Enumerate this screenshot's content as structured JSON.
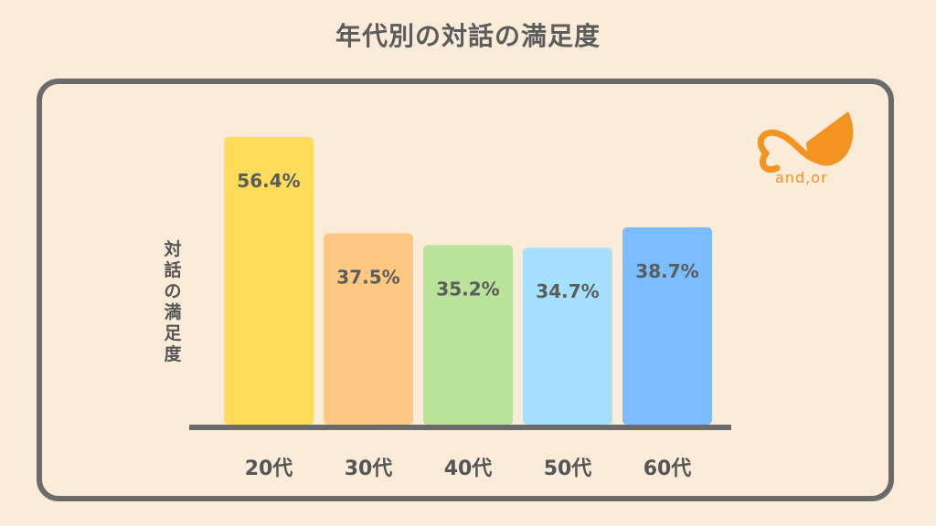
{
  "title": "年代別の対話の満足度",
  "logo": {
    "text": "and,or",
    "color": "#f39320"
  },
  "chart_data": {
    "type": "bar",
    "title": "年代別の対話の満足度",
    "xlabel": "",
    "ylabel": "対話の満足度",
    "categories": [
      "20代",
      "30代",
      "40代",
      "50代",
      "60代"
    ],
    "values": [
      56.4,
      37.5,
      35.2,
      34.7,
      38.7
    ],
    "value_labels": [
      "56.4%",
      "37.5%",
      "35.2%",
      "34.7%",
      "38.7%"
    ],
    "colors": [
      "#ffdc5a",
      "#ffc882",
      "#b9e39b",
      "#a6e0ff",
      "#7bbeff"
    ],
    "ylim": [
      0,
      60
    ],
    "grid": false,
    "legend": "none"
  }
}
